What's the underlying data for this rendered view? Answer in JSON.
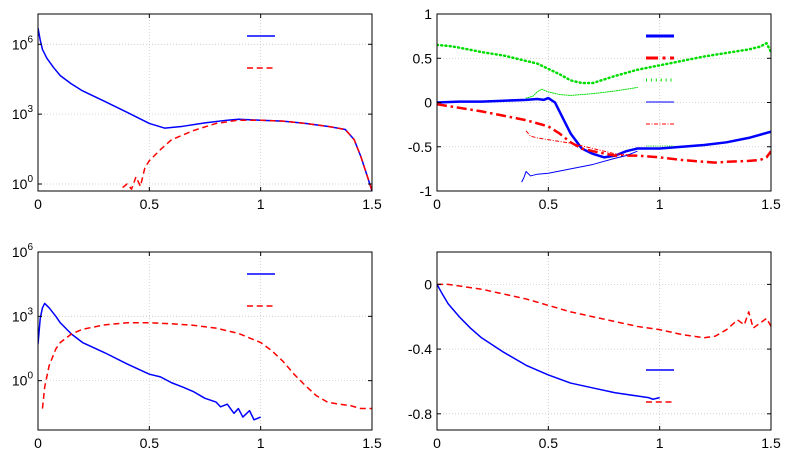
{
  "figure": {
    "panels": 4,
    "colors": {
      "blue": "#0000ff",
      "red": "#ff0000",
      "green": "#00dd00",
      "grid": "#c8c8c8",
      "axis": "#000000"
    }
  },
  "chart_data": [
    {
      "type": "line",
      "panel": "top-left",
      "title": "",
      "xlabel": "",
      "ylabel": "",
      "yscale": "log",
      "xlim": [
        0,
        1.5
      ],
      "ylim": [
        0.5,
        20000000
      ],
      "xticks": [
        0,
        0.5,
        1,
        1.5
      ],
      "xtick_labels": [
        "0",
        "0.5",
        "1",
        "1.5"
      ],
      "yticks": [
        1,
        1000,
        1000000
      ],
      "ytick_labels": [
        {
          "base": "10",
          "exp": "0"
        },
        {
          "base": "10",
          "exp": "3"
        },
        {
          "base": "10",
          "exp": "6"
        }
      ],
      "grid": true,
      "legend": {
        "location": "top-right",
        "entries": [
          {
            "label": "",
            "color": "#0000ff",
            "style": "solid"
          },
          {
            "label": "",
            "color": "#ff0000",
            "style": "dashed"
          }
        ]
      },
      "series": [
        {
          "name": "",
          "color": "#0000ff",
          "style": "solid",
          "width": 1.5,
          "x": [
            0,
            0.01,
            0.02,
            0.04,
            0.07,
            0.1,
            0.15,
            0.2,
            0.3,
            0.4,
            0.5,
            0.57,
            0.65,
            0.75,
            0.85,
            0.9,
            1.0,
            1.1,
            1.2,
            1.3,
            1.38,
            1.42,
            1.45,
            1.48,
            1.5
          ],
          "y": [
            5000000,
            1500000,
            600000,
            250000,
            100000,
            45000,
            20000,
            10000,
            3500,
            1200,
            400,
            250,
            300,
            420,
            550,
            600,
            550,
            500,
            400,
            300,
            220,
            80,
            15,
            2,
            0.5
          ]
        },
        {
          "name": "",
          "color": "#ff0000",
          "style": "dashed",
          "width": 1.5,
          "x": [
            0.38,
            0.4,
            0.42,
            0.44,
            0.46,
            0.48,
            0.5,
            0.55,
            0.6,
            0.7,
            0.8,
            0.9,
            1.0,
            1.1,
            1.2,
            1.3,
            1.38,
            1.42,
            1.45,
            1.48,
            1.5
          ],
          "y": [
            0.7,
            1,
            0.6,
            2,
            0.8,
            5,
            10,
            30,
            80,
            200,
            400,
            550,
            550,
            500,
            400,
            300,
            220,
            80,
            15,
            2,
            0.5
          ]
        }
      ]
    },
    {
      "type": "line",
      "panel": "top-right",
      "title": "",
      "xlabel": "",
      "ylabel": "",
      "xlim": [
        0,
        1.5
      ],
      "ylim": [
        -1,
        1
      ],
      "xticks": [
        0,
        0.5,
        1,
        1.5
      ],
      "xtick_labels": [
        "0",
        "0.5",
        "1",
        "1.5"
      ],
      "yticks": [
        -1,
        -0.5,
        0,
        0.5,
        1
      ],
      "ytick_labels": [
        "-1",
        "-0.5",
        "0",
        "0.5",
        "1"
      ],
      "grid": true,
      "legend": {
        "location": "top-right",
        "entries": [
          {
            "label": "",
            "color": "#0000ff",
            "style": "solid",
            "width": 3
          },
          {
            "label": "",
            "color": "#ff0000",
            "style": "dashdot",
            "width": 3
          },
          {
            "label": "",
            "color": "#00dd00",
            "style": "dotted",
            "width": 3
          },
          {
            "label": "",
            "color": "#0000ff",
            "style": "solid",
            "width": 1
          },
          {
            "label": "",
            "color": "#ff0000",
            "style": "dashdot",
            "width": 1
          },
          {
            "label": "",
            "color": "#00dd00",
            "style": "dotted",
            "width": 1
          }
        ]
      },
      "series": [
        {
          "name": "",
          "color": "#0000ff",
          "style": "solid",
          "width": 2.5,
          "x": [
            0,
            0.1,
            0.2,
            0.3,
            0.4,
            0.45,
            0.48,
            0.5,
            0.53,
            0.56,
            0.6,
            0.65,
            0.7,
            0.75,
            0.8,
            0.85,
            0.9,
            1.0,
            1.1,
            1.2,
            1.3,
            1.4,
            1.5
          ],
          "y": [
            0.0,
            0.01,
            0.01,
            0.02,
            0.03,
            0.04,
            0.03,
            0.05,
            0.0,
            -0.15,
            -0.35,
            -0.52,
            -0.58,
            -0.62,
            -0.6,
            -0.55,
            -0.52,
            -0.52,
            -0.5,
            -0.48,
            -0.45,
            -0.4,
            -0.33
          ]
        },
        {
          "name": "",
          "color": "#ff0000",
          "style": "dashdot",
          "width": 2.5,
          "x": [
            0,
            0.1,
            0.2,
            0.3,
            0.4,
            0.5,
            0.55,
            0.6,
            0.65,
            0.7,
            0.8,
            0.9,
            1.0,
            1.1,
            1.2,
            1.25,
            1.3,
            1.4,
            1.45,
            1.48,
            1.5
          ],
          "y": [
            -0.02,
            -0.06,
            -0.1,
            -0.15,
            -0.2,
            -0.27,
            -0.35,
            -0.45,
            -0.52,
            -0.55,
            -0.6,
            -0.6,
            -0.62,
            -0.65,
            -0.67,
            -0.68,
            -0.67,
            -0.66,
            -0.65,
            -0.62,
            -0.55
          ]
        },
        {
          "name": "",
          "color": "#00dd00",
          "style": "dotted",
          "width": 2.5,
          "x": [
            0,
            0.05,
            0.1,
            0.2,
            0.3,
            0.4,
            0.45,
            0.5,
            0.55,
            0.6,
            0.65,
            0.7,
            0.8,
            0.9,
            1.0,
            1.1,
            1.2,
            1.3,
            1.4,
            1.45,
            1.48,
            1.5
          ],
          "y": [
            0.65,
            0.64,
            0.62,
            0.57,
            0.53,
            0.47,
            0.44,
            0.38,
            0.32,
            0.25,
            0.22,
            0.22,
            0.3,
            0.37,
            0.42,
            0.47,
            0.52,
            0.56,
            0.6,
            0.63,
            0.67,
            0.57
          ]
        },
        {
          "name": "",
          "color": "#0000ff",
          "style": "solid",
          "width": 1,
          "x": [
            0.38,
            0.39,
            0.4,
            0.42,
            0.45,
            0.5,
            0.6,
            0.7,
            0.8,
            0.85,
            0.9
          ],
          "y": [
            -0.9,
            -0.85,
            -0.78,
            -0.83,
            -0.81,
            -0.8,
            -0.75,
            -0.7,
            -0.63,
            -0.6,
            -0.55
          ]
        },
        {
          "name": "",
          "color": "#ff0000",
          "style": "dashdot",
          "width": 1,
          "x": [
            0.4,
            0.42,
            0.45,
            0.5,
            0.55,
            0.6,
            0.7,
            0.8,
            0.9
          ],
          "y": [
            -0.32,
            -0.38,
            -0.4,
            -0.42,
            -0.44,
            -0.46,
            -0.52,
            -0.58,
            -0.6
          ]
        },
        {
          "name": "",
          "color": "#00dd00",
          "style": "dotted",
          "width": 1,
          "x": [
            0.4,
            0.43,
            0.45,
            0.47,
            0.5,
            0.55,
            0.6,
            0.7,
            0.8,
            0.9
          ],
          "y": [
            0.05,
            0.07,
            0.12,
            0.15,
            0.12,
            0.09,
            0.08,
            0.1,
            0.13,
            0.17
          ]
        }
      ]
    },
    {
      "type": "line",
      "panel": "bottom-left",
      "title": "",
      "xlabel": "",
      "ylabel": "",
      "yscale": "log",
      "xlim": [
        0,
        1.5
      ],
      "ylim": [
        0.005,
        1000000
      ],
      "xticks": [
        0,
        0.5,
        1,
        1.5
      ],
      "xtick_labels": [
        "0",
        "0.5",
        "1",
        "1.5"
      ],
      "yticks": [
        1,
        1000,
        1000000
      ],
      "ytick_labels": [
        {
          "base": "10",
          "exp": "0"
        },
        {
          "base": "10",
          "exp": "3"
        },
        {
          "base": "10",
          "exp": "6"
        }
      ],
      "grid": true,
      "legend": {
        "location": "top-right",
        "entries": [
          {
            "label": "",
            "color": "#0000ff",
            "style": "solid"
          },
          {
            "label": "",
            "color": "#ff0000",
            "style": "dashed"
          }
        ]
      },
      "series": [
        {
          "name": "",
          "color": "#0000ff",
          "style": "solid",
          "width": 1.5,
          "x": [
            0,
            0.01,
            0.02,
            0.03,
            0.05,
            0.08,
            0.1,
            0.15,
            0.2,
            0.3,
            0.4,
            0.5,
            0.55,
            0.6,
            0.65,
            0.7,
            0.75,
            0.8,
            0.82,
            0.85,
            0.88,
            0.9,
            0.92,
            0.95,
            0.97,
            1.0
          ],
          "y": [
            50,
            800,
            2500,
            4000,
            2500,
            1000,
            500,
            150,
            60,
            20,
            6,
            2,
            1.5,
            0.8,
            0.5,
            0.3,
            0.15,
            0.1,
            0.06,
            0.08,
            0.03,
            0.05,
            0.02,
            0.04,
            0.015,
            0.02
          ]
        },
        {
          "name": "",
          "color": "#ff0000",
          "style": "dashed",
          "width": 1.5,
          "x": [
            0.02,
            0.03,
            0.05,
            0.08,
            0.1,
            0.15,
            0.2,
            0.3,
            0.4,
            0.5,
            0.6,
            0.7,
            0.8,
            0.9,
            1.0,
            1.05,
            1.1,
            1.15,
            1.2,
            1.25,
            1.3,
            1.35,
            1.4,
            1.45,
            1.5
          ],
          "y": [
            0.05,
            0.5,
            5,
            30,
            60,
            150,
            250,
            400,
            500,
            500,
            450,
            380,
            280,
            160,
            60,
            25,
            8,
            2,
            0.6,
            0.2,
            0.1,
            0.08,
            0.07,
            0.05,
            0.05
          ]
        }
      ]
    },
    {
      "type": "line",
      "panel": "bottom-right",
      "title": "",
      "xlabel": "",
      "ylabel": "",
      "xlim": [
        0,
        1.5
      ],
      "ylim": [
        -0.9,
        0.2
      ],
      "xticks": [
        0,
        0.5,
        1,
        1.5
      ],
      "xtick_labels": [
        "0",
        "0.5",
        "1",
        "1.5"
      ],
      "yticks": [
        -0.8,
        -0.4,
        0
      ],
      "ytick_labels": [
        "-0.8",
        "-0.4",
        "0"
      ],
      "grid": true,
      "legend": {
        "location": "bottom-right",
        "entries": [
          {
            "label": "",
            "color": "#0000ff",
            "style": "solid"
          },
          {
            "label": "",
            "color": "#ff0000",
            "style": "dashed"
          }
        ]
      },
      "series": [
        {
          "name": "",
          "color": "#0000ff",
          "style": "solid",
          "width": 1.5,
          "x": [
            0,
            0.02,
            0.05,
            0.1,
            0.15,
            0.2,
            0.3,
            0.4,
            0.5,
            0.6,
            0.7,
            0.8,
            0.85,
            0.9,
            0.95,
            0.97,
            1.0
          ],
          "y": [
            0,
            -0.05,
            -0.12,
            -0.2,
            -0.27,
            -0.33,
            -0.42,
            -0.5,
            -0.56,
            -0.61,
            -0.64,
            -0.67,
            -0.68,
            -0.69,
            -0.7,
            -0.71,
            -0.7
          ]
        },
        {
          "name": "",
          "color": "#ff0000",
          "style": "dashed",
          "width": 1.5,
          "x": [
            0,
            0.05,
            0.1,
            0.2,
            0.3,
            0.4,
            0.5,
            0.6,
            0.7,
            0.8,
            0.9,
            1.0,
            1.1,
            1.2,
            1.25,
            1.3,
            1.35,
            1.38,
            1.4,
            1.42,
            1.45,
            1.48,
            1.5
          ],
          "y": [
            0,
            0.0,
            -0.01,
            -0.03,
            -0.06,
            -0.09,
            -0.13,
            -0.17,
            -0.2,
            -0.23,
            -0.26,
            -0.28,
            -0.31,
            -0.33,
            -0.32,
            -0.28,
            -0.22,
            -0.25,
            -0.17,
            -0.27,
            -0.24,
            -0.21,
            -0.26
          ]
        }
      ]
    }
  ]
}
